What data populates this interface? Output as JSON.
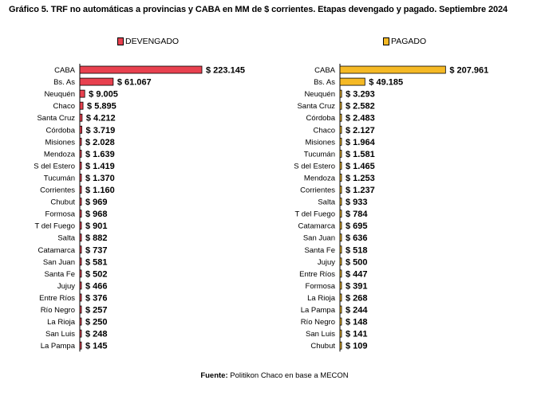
{
  "title": "Gráfico 5. TRF no automáticas a provincias y CABA en MM de $ corrientes. Etapas devengado y pagado. Septiembre 2024",
  "source": {
    "label": "Fuente:",
    "text": "Politikon Chaco en base a MECON"
  },
  "colors": {
    "devengado": "#e8414f",
    "pagado": "#f5b925",
    "axis": "#000000"
  },
  "chart_data": [
    {
      "type": "bar",
      "orientation": "horizontal",
      "series_name": "DEVENGADO",
      "legend": "top",
      "value_prefix": "$ ",
      "categories": [
        "CABA",
        "Bs. As",
        "Neuquén",
        "Chaco",
        "Santa Cruz",
        "Córdoba",
        "Misiones",
        "Mendoza",
        "S del Estero",
        "Tucumán",
        "Corrientes",
        "Chubut",
        "Formosa",
        "T del Fuego",
        "Salta",
        "Catamarca",
        "San Juan",
        "Santa Fe",
        "Jujuy",
        "Entre Ríos",
        "Río Negro",
        "La Rioja",
        "San Luis",
        "La Pampa"
      ],
      "values": [
        223145,
        61067,
        9005,
        5895,
        4212,
        3719,
        2028,
        1639,
        1419,
        1370,
        1160,
        969,
        968,
        901,
        882,
        737,
        581,
        502,
        466,
        376,
        257,
        250,
        248,
        145
      ],
      "labels": [
        "$ 223.145",
        "$ 61.067",
        "$ 9.005",
        "$ 5.895",
        "$ 4.212",
        "$ 3.719",
        "$ 2.028",
        "$ 1.639",
        "$ 1.419",
        "$ 1.370",
        "$ 1.160",
        "$ 969",
        "$ 968",
        "$ 901",
        "$ 882",
        "$ 737",
        "$ 581",
        "$ 502",
        "$ 466",
        "$ 376",
        "$ 257",
        "$ 250",
        "$ 248",
        "$ 145"
      ],
      "xlim": [
        0,
        223145
      ]
    },
    {
      "type": "bar",
      "orientation": "horizontal",
      "series_name": "PAGADO",
      "legend": "top",
      "value_prefix": "$ ",
      "categories": [
        "CABA",
        "Bs. As",
        "Neuquén",
        "Santa Cruz",
        "Córdoba",
        "Chaco",
        "Misiones",
        "Tucumán",
        "S del Estero",
        "Mendoza",
        "Corrientes",
        "Salta",
        "T del Fuego",
        "Catamarca",
        "San Juan",
        "Santa Fe",
        "Jujuy",
        "Entre Ríos",
        "Formosa",
        "La Rioja",
        "La Pampa",
        "Río Negro",
        "San Luis",
        "Chubut"
      ],
      "values": [
        207961,
        49185,
        3293,
        2582,
        2483,
        2127,
        1964,
        1581,
        1465,
        1253,
        1237,
        933,
        784,
        695,
        636,
        518,
        500,
        447,
        391,
        268,
        244,
        148,
        141,
        109
      ],
      "labels": [
        "$ 207.961",
        "$ 49.185",
        "$ 3.293",
        "$ 2.582",
        "$ 2.483",
        "$ 2.127",
        "$ 1.964",
        "$ 1.581",
        "$ 1.465",
        "$ 1.253",
        "$ 1.237",
        "$ 933",
        "$ 784",
        "$ 695",
        "$ 636",
        "$ 518",
        "$ 500",
        "$ 447",
        "$ 391",
        "$ 268",
        "$ 244",
        "$ 148",
        "$ 141",
        "$ 109"
      ],
      "xlim": [
        0,
        223145
      ]
    }
  ]
}
